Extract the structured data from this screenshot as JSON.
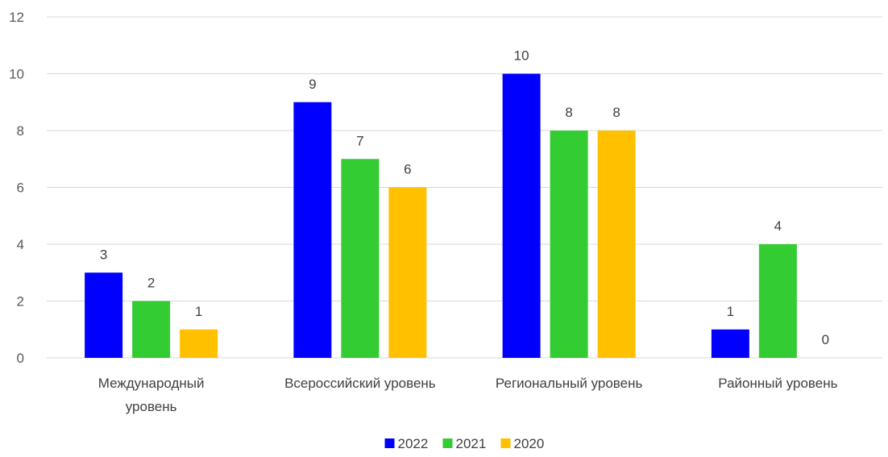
{
  "chart_data": {
    "type": "bar",
    "categories": [
      [
        "Международный",
        "уровень"
      ],
      [
        "Всероссийский уровень"
      ],
      [
        "Региональный уровень"
      ],
      [
        "Районный уровень"
      ]
    ],
    "series": [
      {
        "name": "2022",
        "values": [
          3,
          9,
          10,
          1
        ],
        "color": "#0000FF"
      },
      {
        "name": "2021",
        "values": [
          2,
          7,
          8,
          4
        ],
        "color": "#33CC33"
      },
      {
        "name": "2020",
        "values": [
          1,
          6,
          8,
          0
        ],
        "color": "#FFC000"
      }
    ],
    "ylim": [
      0,
      12
    ],
    "yticks": [
      0,
      2,
      4,
      6,
      8,
      10,
      12
    ],
    "grid": true,
    "legend_position": "bottom",
    "data_labels": true
  }
}
